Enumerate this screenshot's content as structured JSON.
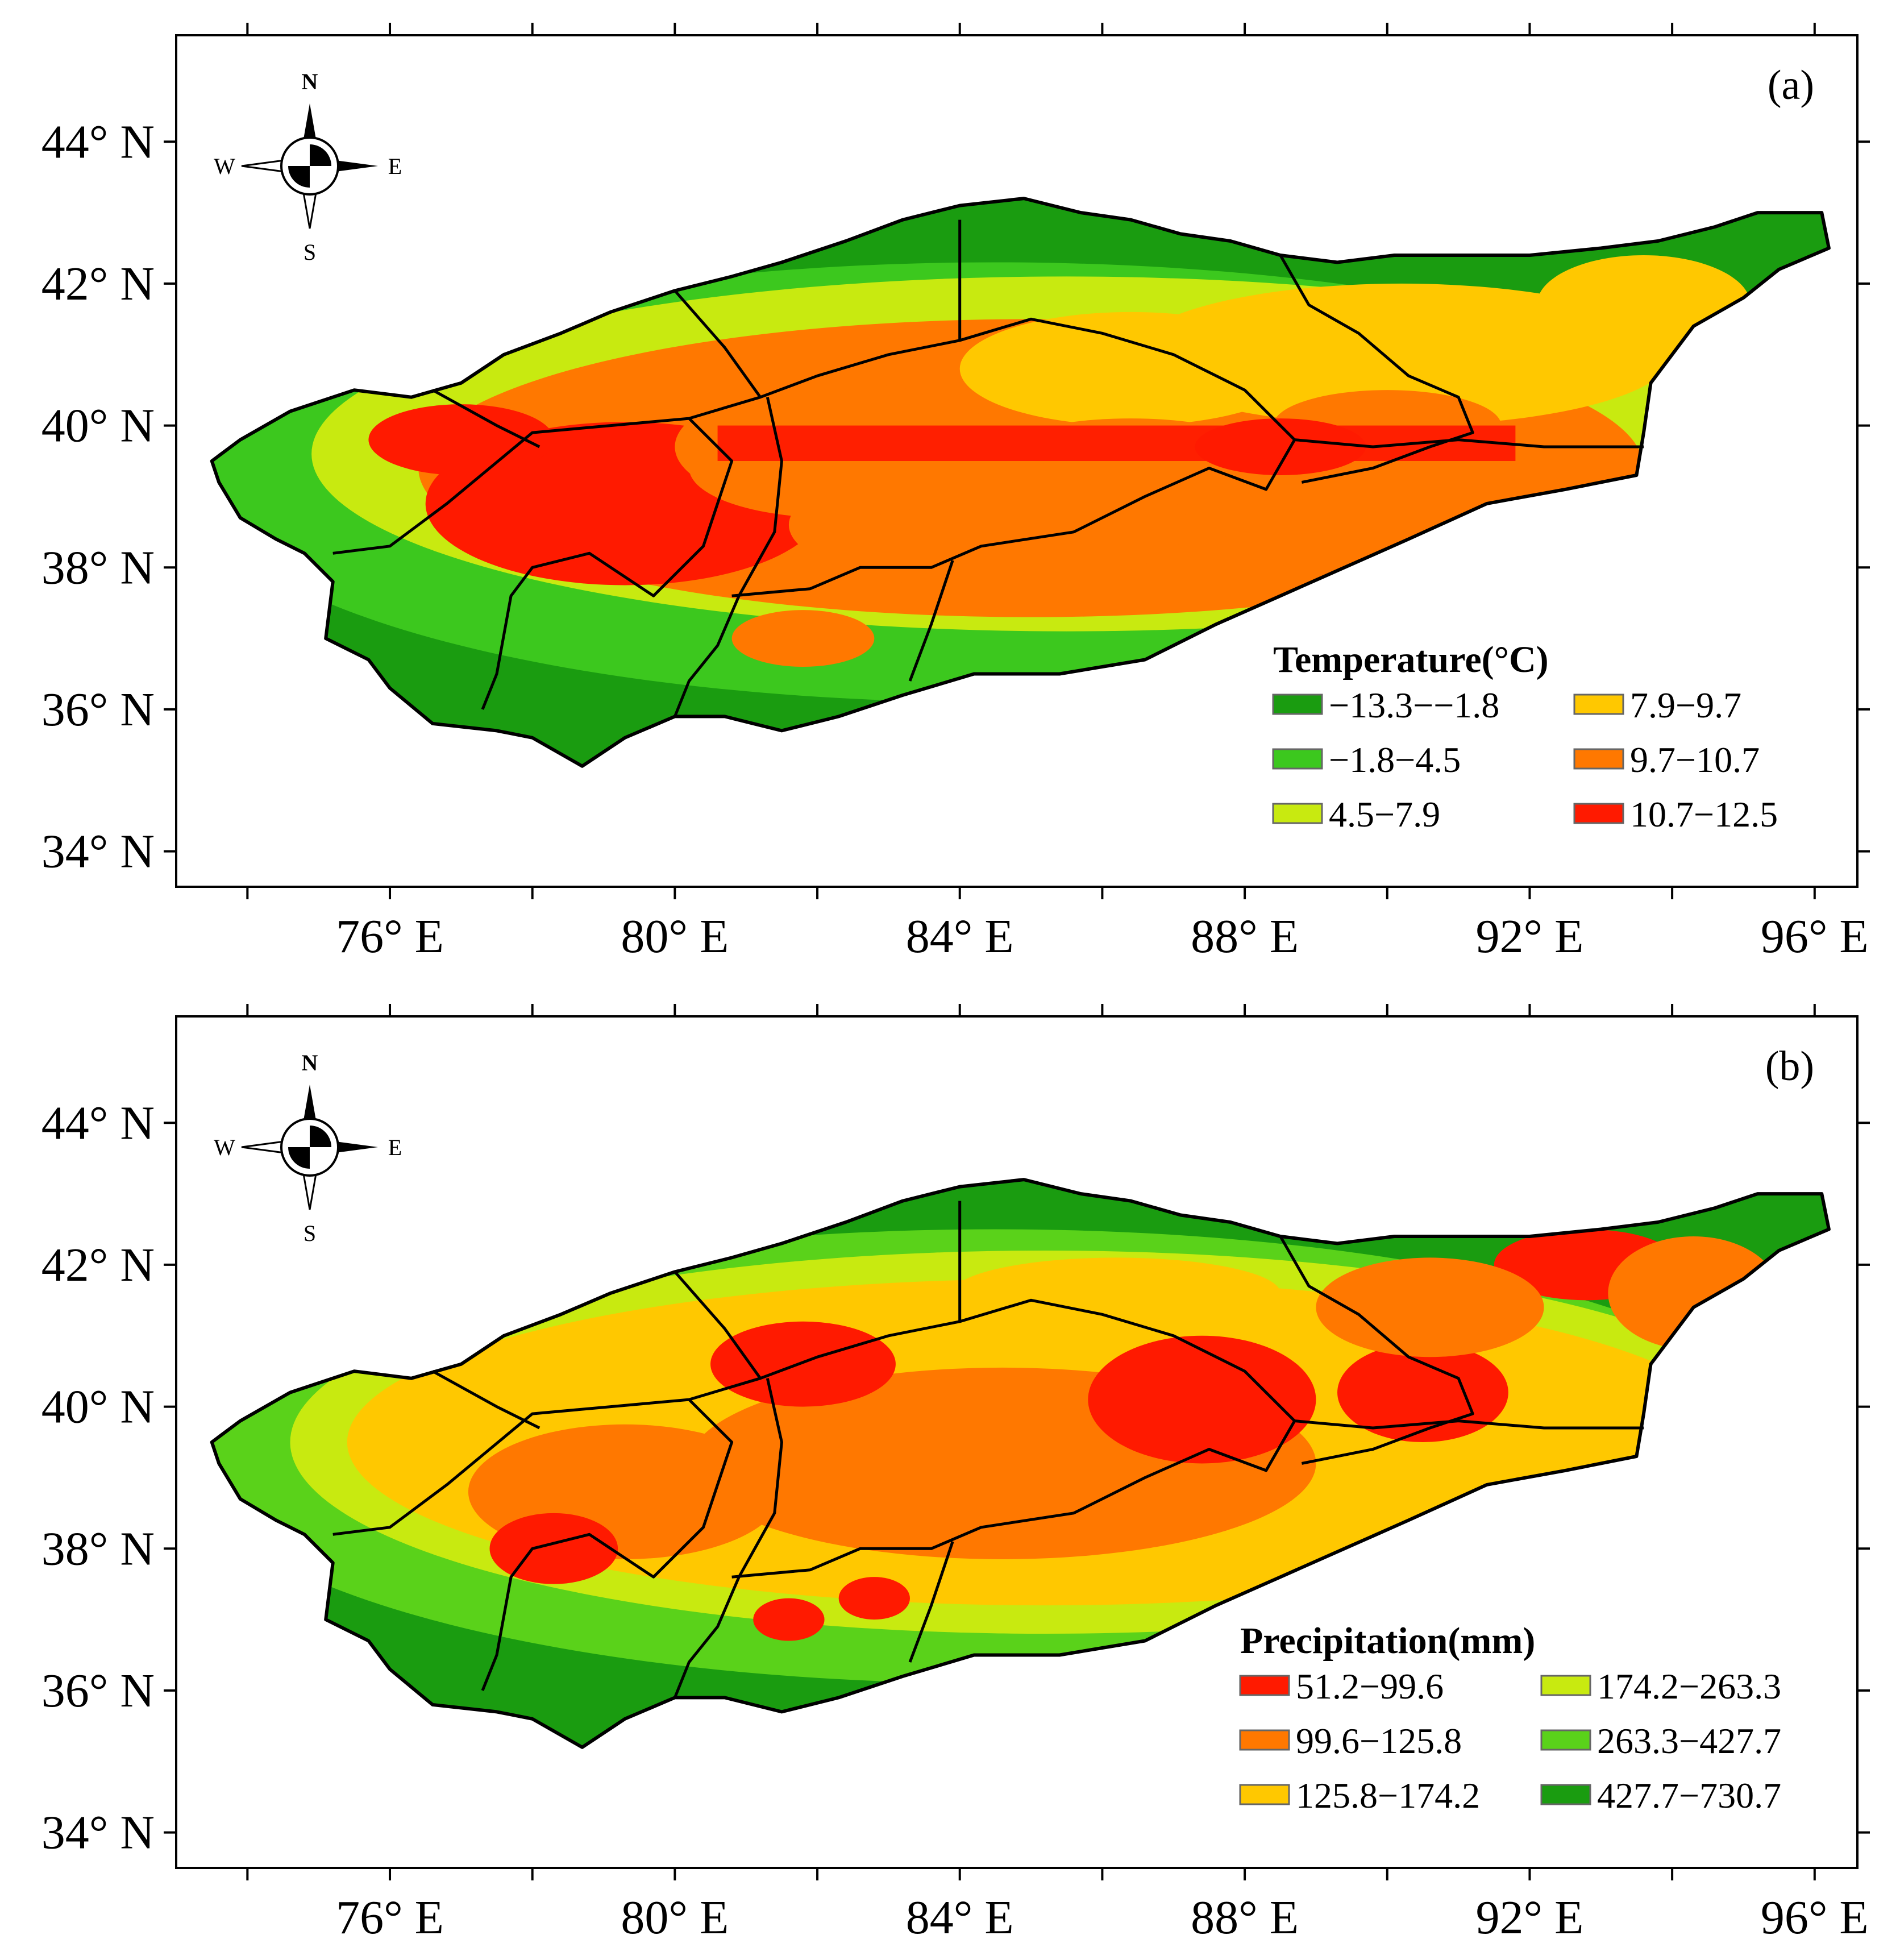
{
  "figure": {
    "panels": [
      {
        "id": "a",
        "label": "(a)",
        "legend_title": "Temperature(°C)",
        "classes": [
          {
            "label": "−13.3−−1.8",
            "color": "#1a9c10"
          },
          {
            "label": "−1.8−4.5",
            "color": "#3cc81e"
          },
          {
            "label": "4.5−7.9",
            "color": "#c8ea10"
          },
          {
            "label": "7.9−9.7",
            "color": "#ffc800"
          },
          {
            "label": "9.7−10.7",
            "color": "#ff7800"
          },
          {
            "label": "10.7−12.5",
            "color": "#ff1a00"
          }
        ]
      },
      {
        "id": "b",
        "label": "(b)",
        "legend_title": "Precipitation(mm)",
        "classes": [
          {
            "label": "51.2−99.6",
            "color": "#ff1a00"
          },
          {
            "label": "99.6−125.8",
            "color": "#ff7800"
          },
          {
            "label": "125.8−174.2",
            "color": "#ffc800"
          },
          {
            "label": "174.2−263.3",
            "color": "#c8ea10"
          },
          {
            "label": "263.3−427.7",
            "color": "#5ad21a"
          },
          {
            "label": "427.7−730.7",
            "color": "#1a9c10"
          }
        ]
      }
    ],
    "lat_labels": [
      "44° N",
      "42° N",
      "40° N",
      "38° N",
      "36° N",
      "34° N"
    ],
    "lon_labels": [
      "76° E",
      "80° E",
      "84° E",
      "88° E",
      "92° E",
      "96° E"
    ],
    "compass": {
      "n": "N",
      "s": "S",
      "e": "E",
      "w": "W"
    }
  }
}
